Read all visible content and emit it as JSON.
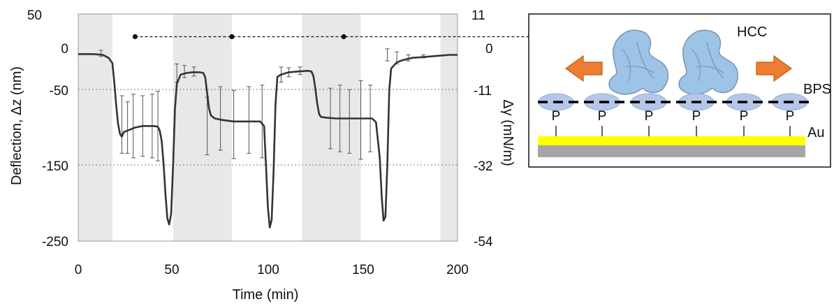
{
  "chart_data": {
    "type": "line",
    "x_axis": {
      "label": "Time (min)",
      "range": [
        0,
        200
      ],
      "ticks": [
        "0",
        "50",
        "100",
        "150",
        "200"
      ]
    },
    "y_axis_left": {
      "label": "Deflection, Δz (nm)",
      "range": [
        -250,
        50
      ],
      "ticks": [
        "50",
        "0",
        "-50",
        "-150",
        "-250"
      ]
    },
    "y_axis_right": {
      "label": "Δγ (mN/m)",
      "ticks": [
        "11",
        "0",
        "-11",
        "-32",
        "-54"
      ]
    },
    "grid": "horizontal dotted lines at -50 and -150",
    "shaded_intervals": [
      [
        0,
        18
      ],
      [
        50,
        81
      ],
      [
        118,
        149
      ],
      [
        191,
        246
      ]
    ],
    "main_series": [
      [
        0,
        -3
      ],
      [
        8,
        -3
      ],
      [
        13,
        -4
      ],
      [
        16,
        -8
      ],
      [
        18,
        -15
      ],
      [
        19,
        -40
      ],
      [
        20,
        -70
      ],
      [
        21,
        -95
      ],
      [
        22,
        -108
      ],
      [
        23,
        -112
      ],
      [
        24,
        -106
      ],
      [
        26,
        -104
      ],
      [
        28,
        -102
      ],
      [
        30,
        -100
      ],
      [
        32,
        -99
      ],
      [
        34,
        -98
      ],
      [
        36,
        -98
      ],
      [
        38,
        -98
      ],
      [
        40,
        -98
      ],
      [
        42,
        -99
      ],
      [
        43,
        -104
      ],
      [
        44,
        -118
      ],
      [
        45,
        -148
      ],
      [
        46,
        -188
      ],
      [
        47,
        -220
      ],
      [
        48,
        -228
      ],
      [
        49,
        -214
      ],
      [
        50,
        -150
      ],
      [
        51,
        -75
      ],
      [
        52,
        -42
      ],
      [
        54,
        -30
      ],
      [
        57,
        -28
      ],
      [
        60,
        -27
      ],
      [
        64,
        -27
      ],
      [
        66,
        -28
      ],
      [
        67,
        -34
      ],
      [
        68,
        -55
      ],
      [
        69,
        -75
      ],
      [
        70,
        -84
      ],
      [
        72,
        -88
      ],
      [
        76,
        -90
      ],
      [
        82,
        -92
      ],
      [
        88,
        -92
      ],
      [
        93,
        -92
      ],
      [
        96,
        -92
      ],
      [
        98,
        -98
      ],
      [
        99,
        -150
      ],
      [
        100,
        -205
      ],
      [
        101,
        -232
      ],
      [
        102,
        -222
      ],
      [
        103,
        -160
      ],
      [
        104,
        -70
      ],
      [
        105,
        -33
      ],
      [
        107,
        -30
      ],
      [
        111,
        -27
      ],
      [
        116,
        -26
      ],
      [
        121,
        -25
      ],
      [
        123,
        -26
      ],
      [
        124,
        -32
      ],
      [
        125,
        -48
      ],
      [
        126,
        -68
      ],
      [
        127,
        -82
      ],
      [
        128,
        -86
      ],
      [
        131,
        -87
      ],
      [
        136,
        -88
      ],
      [
        141,
        -88
      ],
      [
        146,
        -88
      ],
      [
        151,
        -88
      ],
      [
        155,
        -88
      ],
      [
        157,
        -93
      ],
      [
        159,
        -140
      ],
      [
        160,
        -190
      ],
      [
        161,
        -223
      ],
      [
        162,
        -218
      ],
      [
        163,
        -150
      ],
      [
        164,
        -50
      ],
      [
        165,
        -22
      ],
      [
        168,
        -14
      ],
      [
        171,
        -11
      ],
      [
        176,
        -8
      ],
      [
        181,
        -7
      ],
      [
        186,
        -6
      ],
      [
        191,
        -5
      ],
      [
        196,
        -4
      ],
      [
        200,
        -4
      ]
    ],
    "error_bars": [
      [
        12,
        -2,
        4
      ],
      [
        23,
        -96,
        38
      ],
      [
        26,
        -100,
        34
      ],
      [
        29,
        -98,
        42
      ],
      [
        34,
        -98,
        40
      ],
      [
        39,
        -98,
        42
      ],
      [
        42,
        -98,
        46
      ],
      [
        52,
        -28,
        12
      ],
      [
        56,
        -26,
        8
      ],
      [
        61,
        -26,
        6
      ],
      [
        68,
        -98,
        38
      ],
      [
        75,
        -88,
        42
      ],
      [
        82,
        -96,
        45
      ],
      [
        90,
        -90,
        44
      ],
      [
        97,
        -92,
        48
      ],
      [
        107,
        -30,
        10
      ],
      [
        111,
        -27,
        6
      ],
      [
        117,
        -25,
        5
      ],
      [
        133,
        -88,
        40
      ],
      [
        138,
        -88,
        44
      ],
      [
        143,
        -92,
        42
      ],
      [
        149,
        -90,
        52
      ],
      [
        154,
        -88,
        44
      ],
      [
        163,
        -4,
        8
      ],
      [
        168,
        -8,
        8
      ],
      [
        174,
        -8,
        4
      ],
      [
        182,
        -6,
        2
      ]
    ],
    "dashed_series": {
      "points": [
        [
          30,
          20
        ],
        [
          81,
          20
        ],
        [
          140,
          20
        ]
      ],
      "extends_to": "diagram"
    }
  },
  "diagram": {
    "labels": {
      "hcc": "HCC",
      "bps": "BPS",
      "p": "P",
      "au": "Au"
    },
    "colors": {
      "gold": "#ffff00",
      "substrate": "#a6a6a6",
      "arrow": "#ed7d31",
      "lipid": "#b4c7e7",
      "protein": "#9dc3e6"
    }
  }
}
